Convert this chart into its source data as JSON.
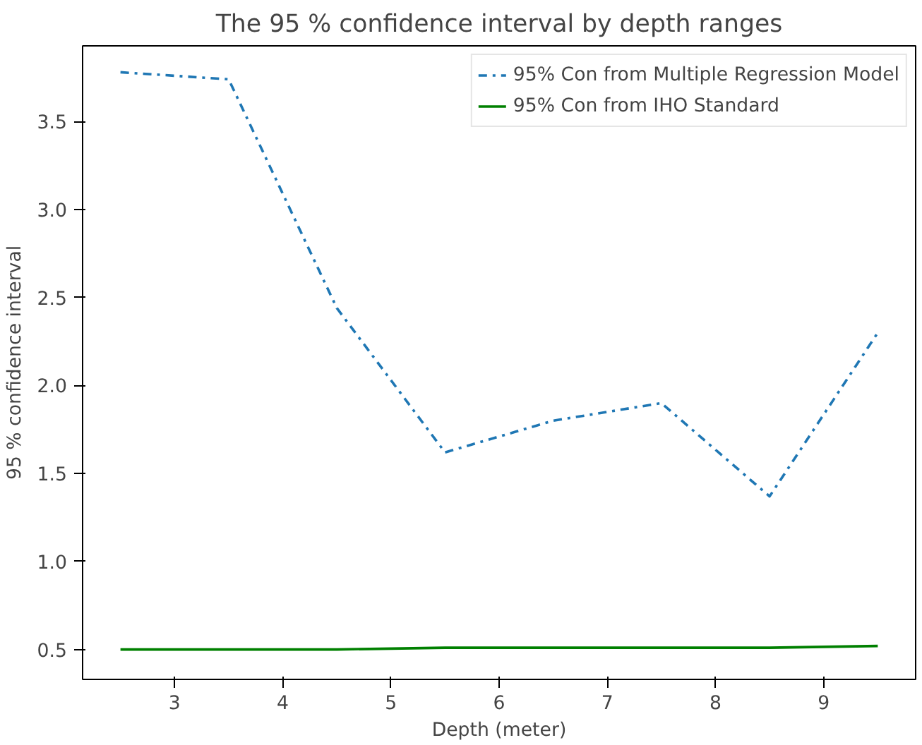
{
  "chart_data": {
    "type": "line",
    "title": "The 95 % confidence interval by depth ranges",
    "xlabel": "Depth (meter)",
    "ylabel": "95 % confidence interval",
    "x": [
      2.5,
      3.5,
      4.5,
      5.5,
      6.5,
      7.5,
      8.5,
      9.5
    ],
    "series": [
      {
        "name": "95% Con from Multiple Regression Model",
        "color": "#1f77b4",
        "line_style": "dashdot",
        "values": [
          3.78,
          3.74,
          2.44,
          1.62,
          1.8,
          1.9,
          1.37,
          2.3
        ]
      },
      {
        "name": "95% Con from IHO Standard",
        "color": "#008000",
        "line_style": "solid",
        "values": [
          0.5,
          0.5,
          0.5,
          0.51,
          0.51,
          0.51,
          0.51,
          0.52
        ]
      }
    ],
    "xlim": [
      2.15,
      9.85
    ],
    "ylim": [
      0.33,
      3.93
    ],
    "xticks": [
      3,
      4,
      5,
      6,
      7,
      8,
      9
    ],
    "yticks": [
      0.5,
      {
        "value": 1,
        "label": "1.0"
      },
      1.5,
      {
        "value": 2,
        "label": "2.0"
      },
      2.5,
      {
        "value": 3,
        "label": "3.0"
      },
      3.5
    ],
    "legend": "top right",
    "grid": false
  }
}
